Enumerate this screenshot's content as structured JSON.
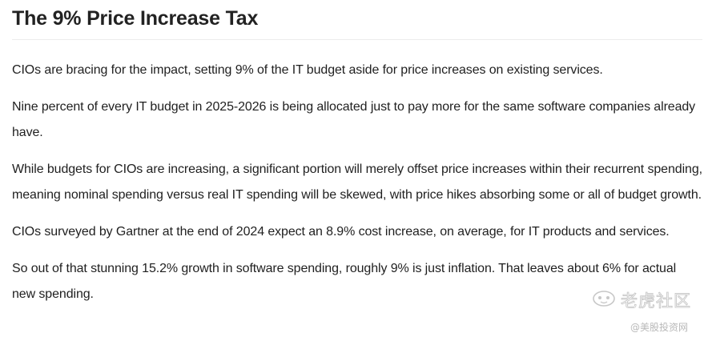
{
  "article": {
    "title": "The 9% Price Increase Tax",
    "paragraphs": [
      "CIOs are bracing for the impact, setting 9% of the IT budget aside for price increases on existing services.",
      "Nine percent of every IT budget in 2025-2026 is being allocated just to pay more for the same software companies already have.",
      "While budgets for CIOs are increasing, a significant portion will merely offset price increases within their recurrent spending, meaning nominal spending versus real IT spending will be skewed, with price hikes absorbing some or all of budget growth.",
      "CIOs surveyed by Gartner at the end of 2024 expect an 8.9% cost increase, on average, for IT products and services.",
      "So out of that stunning 15.2% growth in software spending, roughly 9% is just inflation. That leaves about 6% for actual new spending."
    ]
  },
  "watermark": {
    "main": "老虎社区",
    "sub": "@美股投资网"
  }
}
